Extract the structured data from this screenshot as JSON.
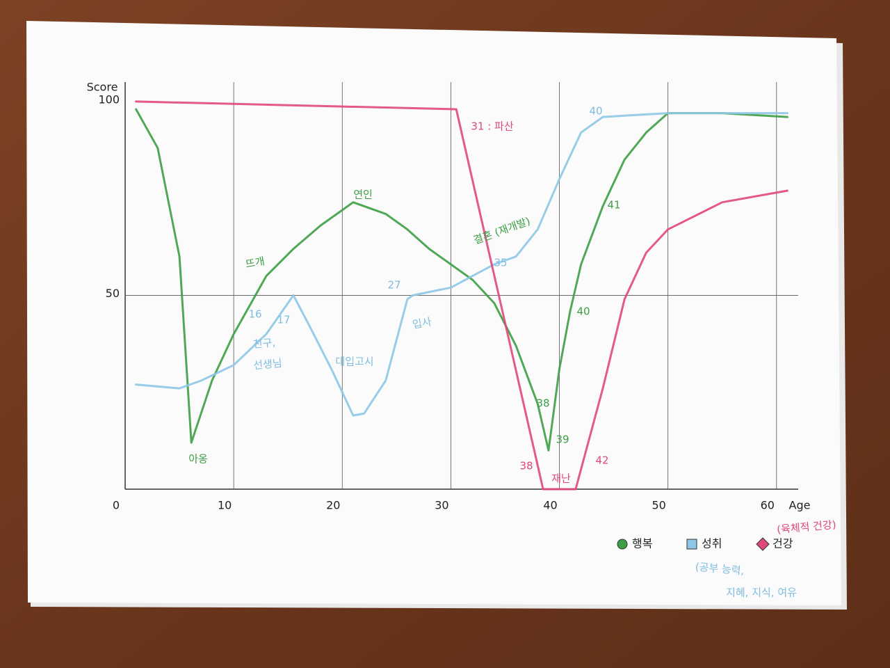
{
  "chart_data": {
    "type": "line",
    "y_label": "Score",
    "x_label": "Age",
    "xlim": [
      0,
      62
    ],
    "ylim": [
      0,
      105
    ],
    "xticks": [
      0,
      10,
      20,
      30,
      40,
      50,
      60
    ],
    "yticks": [
      50,
      100
    ],
    "grid": true,
    "series": [
      {
        "name": "행복",
        "color": "#3d9e45",
        "marker": "circle",
        "x": [
          1,
          3,
          5,
          6.1,
          8,
          10,
          13,
          15.5,
          18,
          20,
          21,
          24,
          26,
          28,
          30,
          32,
          34,
          36,
          38,
          39,
          40,
          41,
          42,
          44,
          46,
          48,
          50,
          55,
          61
        ],
        "values": [
          98,
          88,
          60,
          12,
          28,
          40,
          55,
          62,
          68,
          72,
          74,
          71,
          67,
          62,
          58,
          54,
          48,
          37,
          22,
          10,
          31,
          46,
          58,
          73,
          85,
          92,
          97,
          97,
          96
        ]
      },
      {
        "name": "성취",
        "color": "#8ec6e6",
        "marker": "square",
        "x": [
          1,
          5,
          7,
          10,
          13,
          15.5,
          17,
          19,
          21,
          22,
          24,
          26,
          26.5,
          30,
          32,
          34,
          36,
          38,
          40,
          42,
          44,
          50,
          61
        ],
        "values": [
          27,
          26,
          28,
          32,
          40,
          50,
          42,
          31,
          19,
          19.5,
          28,
          49,
          50,
          52,
          55,
          58,
          60,
          67,
          80,
          92,
          96,
          97,
          97
        ]
      },
      {
        "name": "건강",
        "color": "#e0477c",
        "marker": "diamond",
        "x": [
          1,
          30.5,
          38.5,
          41.5,
          44,
          46,
          48,
          50,
          55,
          61
        ],
        "values": [
          100,
          98,
          0,
          0,
          26,
          49,
          61,
          67,
          74,
          77
        ]
      }
    ],
    "annotations": [
      "아옹",
      "뜨개",
      "연인",
      "16",
      "17",
      "친구,",
      "선생님",
      "대입고시",
      "27",
      "입사",
      "결혼 (재개발)",
      "35",
      "31 : 파산",
      "38",
      "39",
      "40",
      "41",
      "38",
      "재난",
      "42",
      "40",
      "(육체적 건강)",
      "(공부 능력,",
      "지혜, 지식, 여유"
    ]
  }
}
